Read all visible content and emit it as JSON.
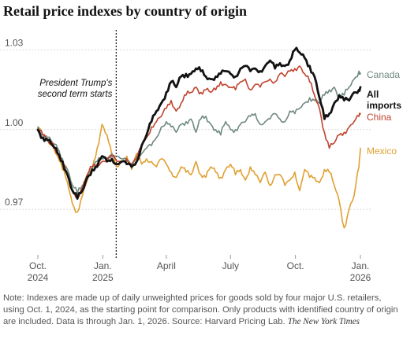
{
  "title": "Retail price indexes by country of origin",
  "note": {
    "text": "Note: Indexes are made up of daily unweighted prices for goods sold by four major U.S. retailers, using Oct. 1, 2024, as the starting point for comparison. Only products with identified country of origin are included. Data is through Jan. 1, 2026.",
    "source": "Source: Harvard Pricing Lab.",
    "brand": "The New York Times"
  },
  "chart_data": {
    "type": "line",
    "title": "Retail price indexes by country of origin",
    "xlabel": "",
    "ylabel": "",
    "x_ticks": [
      {
        "date": "2024-10-01",
        "line1": "Oct.",
        "line2": "2024"
      },
      {
        "date": "2025-01-01",
        "line1": "Jan.",
        "line2": "2025"
      },
      {
        "date": "2025-04-01",
        "line1": "April",
        "line2": ""
      },
      {
        "date": "2025-07-01",
        "line1": "July",
        "line2": ""
      },
      {
        "date": "2025-10-01",
        "line1": "Oct.",
        "line2": ""
      },
      {
        "date": "2026-01-01",
        "line1": "Jan.",
        "line2": "2026"
      }
    ],
    "xlim": [
      "2024-10-01",
      "2026-01-01"
    ],
    "y_ticks": [
      0.97,
      1.0,
      1.03
    ],
    "y_tick_labels": [
      "0.97",
      "1.00",
      "1.03"
    ],
    "ylim": [
      0.957,
      1.034
    ],
    "grid": "horizontal",
    "annotation": {
      "date": "2025-01-20",
      "text_line1": "President Trump's",
      "text_line2": "second term starts"
    },
    "series": [
      {
        "name": "Mexico",
        "color": "#e0a030",
        "x": [
          "2024-10-01",
          "2024-10-08",
          "2024-10-15",
          "2024-10-22",
          "2024-10-29",
          "2024-11-05",
          "2024-11-12",
          "2024-11-19",
          "2024-11-26",
          "2024-12-03",
          "2024-12-10",
          "2024-12-17",
          "2024-12-24",
          "2024-12-31",
          "2025-01-07",
          "2025-01-14",
          "2025-01-21",
          "2025-01-28",
          "2025-02-04",
          "2025-02-11",
          "2025-02-18",
          "2025-02-25",
          "2025-03-04",
          "2025-03-11",
          "2025-03-18",
          "2025-03-25",
          "2025-04-01",
          "2025-04-08",
          "2025-04-15",
          "2025-04-22",
          "2025-04-29",
          "2025-05-06",
          "2025-05-13",
          "2025-05-20",
          "2025-05-27",
          "2025-06-03",
          "2025-06-10",
          "2025-06-17",
          "2025-06-24",
          "2025-07-01",
          "2025-07-08",
          "2025-07-15",
          "2025-07-22",
          "2025-07-29",
          "2025-08-05",
          "2025-08-12",
          "2025-08-19",
          "2025-08-26",
          "2025-09-02",
          "2025-09-09",
          "2025-09-16",
          "2025-09-23",
          "2025-09-30",
          "2025-10-07",
          "2025-10-14",
          "2025-10-21",
          "2025-10-28",
          "2025-11-04",
          "2025-11-11",
          "2025-11-18",
          "2025-11-25",
          "2025-12-02",
          "2025-12-09",
          "2025-12-16",
          "2025-12-23",
          "2025-12-30",
          "2026-01-01"
        ],
        "values": [
          1.001,
          0.998,
          0.996,
          0.994,
          0.99,
          0.985,
          0.98,
          0.972,
          0.969,
          0.975,
          0.981,
          0.985,
          0.993,
          1.002,
          0.998,
          0.99,
          0.986,
          0.988,
          0.99,
          0.985,
          0.991,
          0.987,
          0.989,
          0.988,
          0.986,
          0.989,
          0.987,
          0.984,
          0.982,
          0.986,
          0.984,
          0.983,
          0.988,
          0.983,
          0.982,
          0.986,
          0.984,
          0.982,
          0.985,
          0.987,
          0.983,
          0.985,
          0.981,
          0.986,
          0.983,
          0.98,
          0.984,
          0.979,
          0.983,
          0.983,
          0.979,
          0.981,
          0.984,
          0.977,
          0.985,
          0.982,
          0.982,
          0.98,
          0.985,
          0.984,
          0.979,
          0.973,
          0.963,
          0.97,
          0.975,
          0.986,
          0.993
        ]
      },
      {
        "name": "Canada",
        "color": "#6f8a7e",
        "x": [
          "2024-10-01",
          "2024-10-08",
          "2024-10-15",
          "2024-10-22",
          "2024-10-29",
          "2024-11-05",
          "2024-11-12",
          "2024-11-19",
          "2024-11-26",
          "2024-12-03",
          "2024-12-10",
          "2024-12-17",
          "2024-12-24",
          "2024-12-31",
          "2025-01-07",
          "2025-01-14",
          "2025-01-21",
          "2025-01-28",
          "2025-02-04",
          "2025-02-11",
          "2025-02-18",
          "2025-02-25",
          "2025-03-04",
          "2025-03-11",
          "2025-03-18",
          "2025-03-25",
          "2025-04-01",
          "2025-04-08",
          "2025-04-15",
          "2025-04-22",
          "2025-04-29",
          "2025-05-06",
          "2025-05-13",
          "2025-05-20",
          "2025-05-27",
          "2025-06-03",
          "2025-06-10",
          "2025-06-17",
          "2025-06-24",
          "2025-07-01",
          "2025-07-08",
          "2025-07-15",
          "2025-07-22",
          "2025-07-29",
          "2025-08-05",
          "2025-08-12",
          "2025-08-19",
          "2025-08-26",
          "2025-09-02",
          "2025-09-09",
          "2025-09-16",
          "2025-09-23",
          "2025-09-30",
          "2025-10-07",
          "2025-10-14",
          "2025-10-21",
          "2025-10-28",
          "2025-11-04",
          "2025-11-11",
          "2025-11-18",
          "2025-11-25",
          "2025-12-02",
          "2025-12-09",
          "2025-12-16",
          "2025-12-23",
          "2025-12-30",
          "2026-01-01"
        ],
        "values": [
          1.001,
          0.998,
          0.997,
          0.995,
          0.993,
          0.989,
          0.985,
          0.979,
          0.976,
          0.979,
          0.983,
          0.986,
          0.988,
          0.989,
          0.989,
          0.991,
          0.99,
          0.989,
          0.988,
          0.987,
          0.99,
          0.991,
          0.993,
          0.994,
          0.997,
          1.001,
          1.003,
          1.001,
          0.999,
          1.002,
          1.003,
          1.004,
          0.999,
          1.004,
          1.005,
          1.002,
          1.0,
          0.998,
          1.003,
          1.0,
          1.0,
          1.002,
          1.003,
          1.005,
          1.006,
          1.002,
          1.003,
          1.004,
          1.006,
          1.004,
          1.003,
          1.007,
          1.006,
          1.008,
          1.01,
          1.012,
          1.011,
          1.01,
          1.013,
          1.015,
          1.016,
          1.012,
          1.013,
          1.016,
          1.019,
          1.022,
          1.021
        ]
      },
      {
        "name": "China",
        "color": "#c0442e",
        "x": [
          "2024-10-01",
          "2024-10-08",
          "2024-10-15",
          "2024-10-22",
          "2024-10-29",
          "2024-11-05",
          "2024-11-12",
          "2024-11-19",
          "2024-11-26",
          "2024-12-03",
          "2024-12-10",
          "2024-12-17",
          "2024-12-24",
          "2024-12-31",
          "2025-01-07",
          "2025-01-14",
          "2025-01-21",
          "2025-01-28",
          "2025-02-04",
          "2025-02-11",
          "2025-02-18",
          "2025-02-25",
          "2025-03-04",
          "2025-03-11",
          "2025-03-18",
          "2025-03-25",
          "2025-04-01",
          "2025-04-08",
          "2025-04-15",
          "2025-04-22",
          "2025-04-29",
          "2025-05-06",
          "2025-05-13",
          "2025-05-20",
          "2025-05-27",
          "2025-06-03",
          "2025-06-10",
          "2025-06-17",
          "2025-06-24",
          "2025-07-01",
          "2025-07-08",
          "2025-07-15",
          "2025-07-22",
          "2025-07-29",
          "2025-08-05",
          "2025-08-12",
          "2025-08-19",
          "2025-08-26",
          "2025-09-02",
          "2025-09-09",
          "2025-09-16",
          "2025-09-23",
          "2025-09-30",
          "2025-10-07",
          "2025-10-14",
          "2025-10-21",
          "2025-10-28",
          "2025-11-04",
          "2025-11-11",
          "2025-11-18",
          "2025-11-25",
          "2025-12-02",
          "2025-12-09",
          "2025-12-16",
          "2025-12-23",
          "2025-12-30",
          "2026-01-01"
        ],
        "values": [
          1.0,
          0.998,
          0.996,
          0.995,
          0.991,
          0.987,
          0.983,
          0.977,
          0.975,
          0.978,
          0.983,
          0.986,
          0.987,
          0.988,
          0.989,
          0.99,
          0.988,
          0.988,
          0.989,
          0.987,
          0.989,
          0.994,
          0.997,
          1.001,
          1.003,
          1.005,
          1.008,
          1.011,
          1.007,
          1.01,
          1.013,
          1.014,
          1.016,
          1.014,
          1.015,
          1.014,
          1.015,
          1.018,
          1.017,
          1.016,
          1.015,
          1.018,
          1.019,
          1.015,
          1.017,
          1.016,
          1.018,
          1.019,
          1.018,
          1.021,
          1.02,
          1.022,
          1.023,
          1.024,
          1.021,
          1.018,
          1.013,
          1.008,
          0.999,
          0.993,
          0.995,
          0.998,
          0.999,
          1.001,
          1.003,
          1.005,
          1.006
        ]
      },
      {
        "name": "All imports",
        "color": "#121212",
        "x": [
          "2024-10-01",
          "2024-10-08",
          "2024-10-15",
          "2024-10-22",
          "2024-10-29",
          "2024-11-05",
          "2024-11-12",
          "2024-11-19",
          "2024-11-26",
          "2024-12-03",
          "2024-12-10",
          "2024-12-17",
          "2024-12-24",
          "2024-12-31",
          "2025-01-07",
          "2025-01-14",
          "2025-01-21",
          "2025-01-28",
          "2025-02-04",
          "2025-02-11",
          "2025-02-18",
          "2025-02-25",
          "2025-03-04",
          "2025-03-11",
          "2025-03-18",
          "2025-03-25",
          "2025-04-01",
          "2025-04-08",
          "2025-04-15",
          "2025-04-22",
          "2025-04-29",
          "2025-05-06",
          "2025-05-13",
          "2025-05-20",
          "2025-05-27",
          "2025-06-03",
          "2025-06-10",
          "2025-06-17",
          "2025-06-24",
          "2025-07-01",
          "2025-07-08",
          "2025-07-15",
          "2025-07-22",
          "2025-07-29",
          "2025-08-05",
          "2025-08-12",
          "2025-08-19",
          "2025-08-26",
          "2025-09-02",
          "2025-09-09",
          "2025-09-16",
          "2025-09-23",
          "2025-09-30",
          "2025-10-07",
          "2025-10-14",
          "2025-10-21",
          "2025-10-28",
          "2025-11-04",
          "2025-11-11",
          "2025-11-18",
          "2025-11-25",
          "2025-12-02",
          "2025-12-09",
          "2025-12-16",
          "2025-12-23",
          "2025-12-30",
          "2026-01-01"
        ],
        "values": [
          1.0,
          0.997,
          0.996,
          0.994,
          0.991,
          0.988,
          0.983,
          0.977,
          0.974,
          0.977,
          0.982,
          0.985,
          0.986,
          0.99,
          0.988,
          0.989,
          0.987,
          0.988,
          0.987,
          0.986,
          0.988,
          0.994,
          0.998,
          1.003,
          1.007,
          1.01,
          1.014,
          1.018,
          1.016,
          1.02,
          1.021,
          1.021,
          1.023,
          1.022,
          1.02,
          1.019,
          1.02,
          1.021,
          1.022,
          1.021,
          1.02,
          1.023,
          1.024,
          1.022,
          1.023,
          1.022,
          1.024,
          1.026,
          1.023,
          1.025,
          1.024,
          1.026,
          1.03,
          1.029,
          1.027,
          1.024,
          1.02,
          1.012,
          1.004,
          1.006,
          1.01,
          1.013,
          1.011,
          1.011,
          1.014,
          1.015,
          1.016
        ]
      }
    ],
    "series_labels": [
      {
        "series": "Canada",
        "line1": "Canada",
        "line2": "",
        "value": 1.021
      },
      {
        "series": "All imports",
        "line1": "All",
        "line2": "imports",
        "value": 1.013
      },
      {
        "series": "China",
        "line1": "China",
        "line2": "",
        "value": 1.006
      },
      {
        "series": "Mexico",
        "line1": "Mexico",
        "line2": "",
        "value": 0.993
      }
    ]
  }
}
